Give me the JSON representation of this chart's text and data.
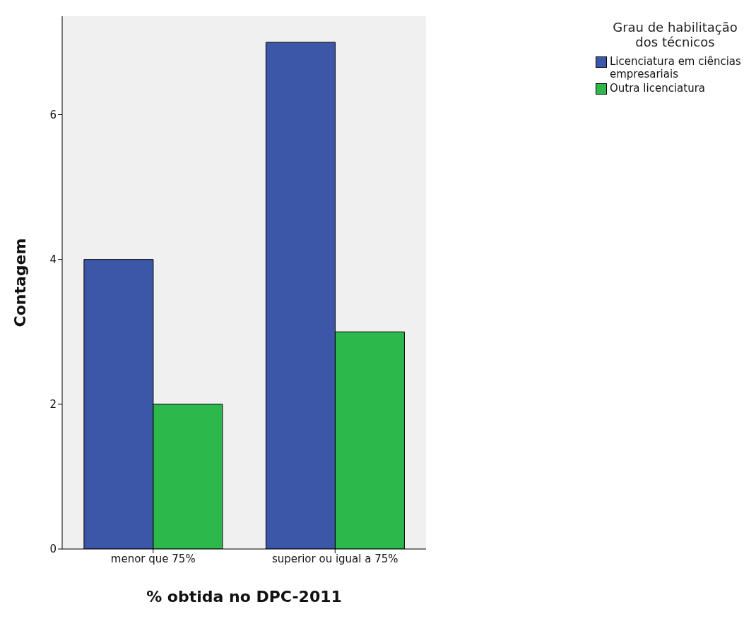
{
  "chart_data": {
    "type": "bar",
    "xlabel": "% obtida no DPC-2011",
    "ylabel": "Contagem",
    "legend_title": "Grau de habilitação dos técnicos",
    "categories": [
      "menor que 75%",
      "superior ou igual a 75%"
    ],
    "series": [
      {
        "name": "Licenciatura em ciências empresariais",
        "color": "#3d57a8",
        "values": [
          4,
          7
        ]
      },
      {
        "name": "Outra licenciatura",
        "color": "#2db84b",
        "values": [
          2,
          3
        ]
      }
    ],
    "ylim": [
      0,
      7.36
    ],
    "yticks": [
      0,
      2,
      4,
      6
    ],
    "grid": false,
    "legend": "top right"
  }
}
